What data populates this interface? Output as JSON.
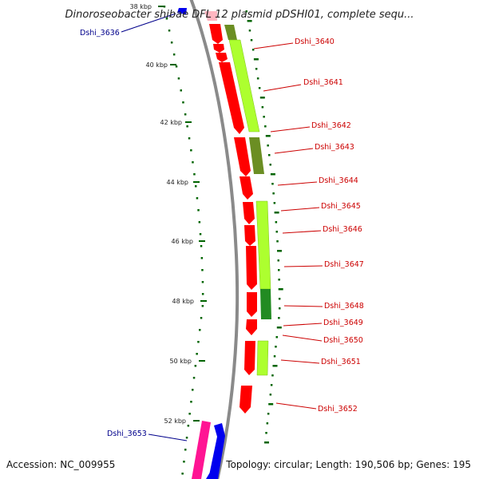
{
  "map": {
    "title": "Dinoroseobacter shibae DFL 12 plasmid pDSHI01, complete sequ...",
    "accession": "Accession: NC_009955",
    "summary": "Topology: circular; Length: 190,506 bp; Genes: 195"
  },
  "colors": {
    "backbone": "#8a8a8a",
    "cds_forward": "#ff0000",
    "cds_reverse": "#0000ee",
    "cds_pink": "#ff1493",
    "cog_lime": "#adff2f",
    "cog_olive": "#6b8e23",
    "cog_green": "#228b22",
    "ticks": "#006400",
    "label_right": "#cc0000",
    "label_left": "#00008b"
  },
  "kbp_ticks": [
    "38 kbp",
    "40 kbp",
    "42 kbp",
    "44 kbp",
    "46 kbp",
    "48 kbp",
    "50 kbp",
    "52 kbp"
  ],
  "gene_labels_right": [
    "Dshi_3640",
    "Dshi_3641",
    "Dshi_3642",
    "Dshi_3643",
    "Dshi_3644",
    "Dshi_3645",
    "Dshi_3646",
    "Dshi_3647",
    "Dshi_3648",
    "Dshi_3649",
    "Dshi_3650",
    "Dshi_3651",
    "Dshi_3652"
  ],
  "gene_labels_left": [
    "Dshi_3636",
    "Dshi_3653"
  ]
}
